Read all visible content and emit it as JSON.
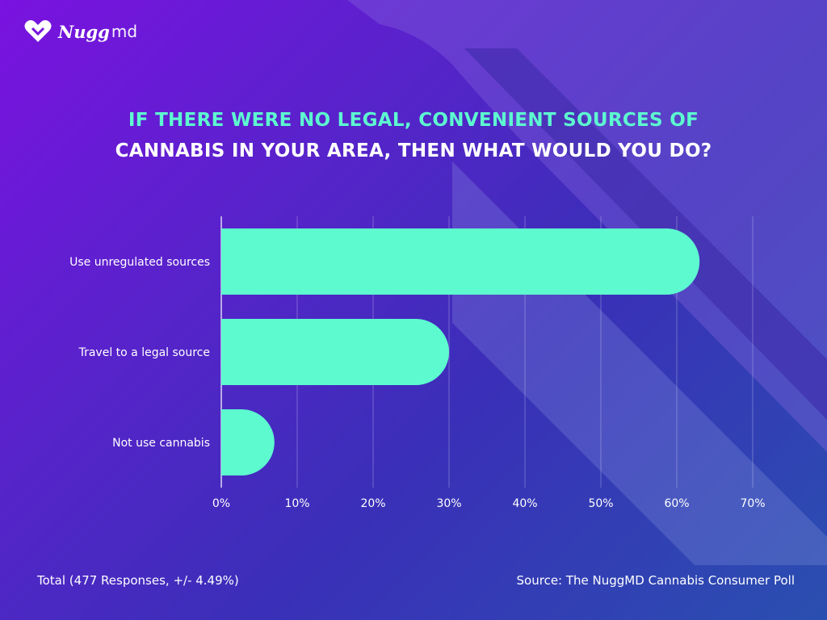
{
  "brand": {
    "name_bold": "Nugg",
    "name_light": "md"
  },
  "title": {
    "line1": "IF THERE WERE NO LEGAL, CONVENIENT SOURCES OF",
    "line2": "CANNABIS IN YOUR AREA, THEN WHAT WOULD YOU DO?"
  },
  "colors": {
    "bar": "#5dfad0",
    "title_accent": "#5dfad0",
    "text": "#ffffff"
  },
  "chart_data": {
    "type": "bar",
    "orientation": "horizontal",
    "title": "IF THERE WERE NO LEGAL, CONVENIENT SOURCES OF CANNABIS IN YOUR AREA, THEN WHAT WOULD YOU DO?",
    "categories": [
      "Use unregulated sources",
      "Travel to a legal source",
      "Not use cannabis"
    ],
    "values": [
      63,
      30,
      7
    ],
    "unit": "%",
    "xlim": [
      0,
      70
    ],
    "ticks": [
      0,
      10,
      20,
      30,
      40,
      50,
      60,
      70
    ],
    "tick_labels": [
      "0%",
      "10%",
      "20%",
      "30%",
      "40%",
      "50%",
      "60%",
      "70%"
    ],
    "grid": true,
    "legend": "none"
  },
  "footer": {
    "total": "Total (477 Responses, +/- 4.49%)",
    "source": "Source: The NuggMD Cannabis Consumer Poll"
  }
}
